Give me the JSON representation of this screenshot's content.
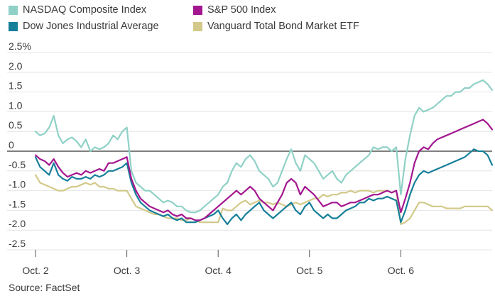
{
  "chart_data": {
    "type": "line",
    "title": "",
    "xlabel": "",
    "ylabel": "",
    "y_unit": "%",
    "ylim": [
      -2.5,
      2.5
    ],
    "y_ticks": [
      {
        "value": 2.5,
        "label": "2.5%"
      },
      {
        "value": 2.0,
        "label": "2.0"
      },
      {
        "value": 1.5,
        "label": "1.5"
      },
      {
        "value": 1.0,
        "label": "1.0"
      },
      {
        "value": 0.5,
        "label": "0.5"
      },
      {
        "value": 0.0,
        "label": "0"
      },
      {
        "value": -0.5,
        "label": "-0.5"
      },
      {
        "value": -1.0,
        "label": "-1.0"
      },
      {
        "value": -1.5,
        "label": "-1.5"
      },
      {
        "value": -2.0,
        "label": "-2.0"
      },
      {
        "value": -2.5,
        "label": "-2.5"
      }
    ],
    "x_ticks": [
      "Oct. 2",
      "Oct. 3",
      "Oct. 4",
      "Oct. 5",
      "Oct. 6"
    ],
    "grid": "horizontal",
    "zero_line": true,
    "legend_position": "top-left, two columns",
    "source": "Source: FactSet",
    "series": [
      {
        "name": "NASDAQ Composite Index",
        "color": "#8fd1c6",
        "x": [
          2.0,
          2.05,
          2.1,
          2.15,
          2.2,
          2.25,
          2.3,
          2.35,
          2.4,
          2.45,
          2.5,
          2.55,
          2.6,
          2.65,
          2.7,
          2.75,
          2.8,
          2.85,
          2.9,
          2.95,
          3.0,
          3.05,
          3.1,
          3.15,
          3.2,
          3.25,
          3.3,
          3.35,
          3.4,
          3.45,
          3.5,
          3.55,
          3.6,
          3.65,
          3.7,
          3.75,
          3.8,
          3.85,
          3.9,
          3.95,
          4.0,
          4.05,
          4.1,
          4.15,
          4.2,
          4.25,
          4.3,
          4.35,
          4.4,
          4.45,
          4.5,
          4.55,
          4.6,
          4.65,
          4.7,
          4.75,
          4.8,
          4.85,
          4.9,
          4.95,
          5.0,
          5.05,
          5.1,
          5.15,
          5.2,
          5.25,
          5.3,
          5.35,
          5.4,
          5.45,
          5.5,
          5.55,
          5.6,
          5.65,
          5.7,
          5.75,
          5.8,
          5.85,
          5.9,
          5.95,
          6.0,
          6.05,
          6.1,
          6.15,
          6.2,
          6.25,
          6.3,
          6.35,
          6.4,
          6.45,
          6.5,
          6.55,
          6.6,
          6.65,
          6.7,
          6.75,
          6.8,
          6.85,
          6.9,
          6.95,
          7.0
        ],
        "values": [
          0.5,
          0.4,
          0.45,
          0.6,
          0.9,
          0.4,
          0.2,
          0.3,
          0.35,
          0.25,
          0.1,
          0.3,
          0.0,
          0.1,
          0.05,
          0.1,
          0.2,
          0.4,
          0.3,
          0.5,
          0.6,
          -0.5,
          -0.8,
          -0.9,
          -1.0,
          -1.0,
          -1.1,
          -1.2,
          -1.3,
          -1.25,
          -1.3,
          -1.4,
          -1.4,
          -1.5,
          -1.55,
          -1.55,
          -1.5,
          -1.4,
          -1.3,
          -1.2,
          -1.1,
          -0.9,
          -0.8,
          -0.5,
          -0.3,
          -0.4,
          -0.2,
          -0.1,
          -0.25,
          -0.5,
          -0.6,
          -0.7,
          -0.9,
          -0.8,
          -0.5,
          -0.2,
          0.05,
          -0.3,
          -0.5,
          -0.1,
          -0.2,
          -0.3,
          -0.5,
          -0.7,
          -0.6,
          -0.5,
          -0.7,
          -0.8,
          -0.6,
          -0.5,
          -0.4,
          -0.3,
          -0.2,
          -0.1,
          0.1,
          0.05,
          0.1,
          0.1,
          0.0,
          0.1,
          -1.1,
          -0.2,
          0.4,
          0.9,
          1.1,
          1.0,
          1.05,
          1.1,
          1.2,
          1.3,
          1.4,
          1.4,
          1.5,
          1.5,
          1.6,
          1.6,
          1.7,
          1.75,
          1.8,
          1.7,
          1.55
        ]
      },
      {
        "name": "S&P 500 Index",
        "color": "#a3168f",
        "x": [
          2.0,
          2.05,
          2.1,
          2.15,
          2.2,
          2.25,
          2.3,
          2.35,
          2.4,
          2.45,
          2.5,
          2.55,
          2.6,
          2.65,
          2.7,
          2.75,
          2.8,
          2.85,
          2.9,
          2.95,
          3.0,
          3.05,
          3.1,
          3.15,
          3.2,
          3.25,
          3.3,
          3.35,
          3.4,
          3.45,
          3.5,
          3.55,
          3.6,
          3.65,
          3.7,
          3.75,
          3.8,
          3.85,
          3.9,
          3.95,
          4.0,
          4.05,
          4.1,
          4.15,
          4.2,
          4.25,
          4.3,
          4.35,
          4.4,
          4.45,
          4.5,
          4.55,
          4.6,
          4.65,
          4.7,
          4.75,
          4.8,
          4.85,
          4.9,
          4.95,
          5.0,
          5.05,
          5.1,
          5.15,
          5.2,
          5.25,
          5.3,
          5.35,
          5.4,
          5.45,
          5.5,
          5.55,
          5.6,
          5.65,
          5.7,
          5.75,
          5.8,
          5.85,
          5.9,
          5.95,
          6.0,
          6.05,
          6.1,
          6.15,
          6.2,
          6.25,
          6.3,
          6.35,
          6.4,
          6.45,
          6.5,
          6.55,
          6.6,
          6.65,
          6.7,
          6.75,
          6.8,
          6.85,
          6.9,
          6.95,
          7.0
        ],
        "values": [
          -0.1,
          -0.2,
          -0.25,
          -0.35,
          -0.2,
          -0.4,
          -0.55,
          -0.65,
          -0.6,
          -0.55,
          -0.6,
          -0.5,
          -0.55,
          -0.5,
          -0.45,
          -0.5,
          -0.3,
          -0.3,
          -0.25,
          -0.2,
          -0.15,
          -0.7,
          -1.0,
          -1.2,
          -1.3,
          -1.4,
          -1.45,
          -1.5,
          -1.55,
          -1.5,
          -1.6,
          -1.65,
          -1.6,
          -1.7,
          -1.7,
          -1.75,
          -1.75,
          -1.7,
          -1.6,
          -1.5,
          -1.4,
          -1.3,
          -1.2,
          -1.1,
          -1.0,
          -1.1,
          -1.0,
          -0.9,
          -1.0,
          -1.2,
          -1.3,
          -1.4,
          -1.5,
          -1.3,
          -1.1,
          -0.8,
          -0.7,
          -0.8,
          -1.1,
          -0.9,
          -1.0,
          -1.1,
          -1.25,
          -1.4,
          -1.35,
          -1.3,
          -1.3,
          -1.4,
          -1.35,
          -1.3,
          -1.3,
          -1.25,
          -1.2,
          -1.15,
          -1.1,
          -1.1,
          -1.05,
          -1.0,
          -1.05,
          -1.0,
          -1.55,
          -1.2,
          -0.8,
          -0.3,
          0.0,
          0.1,
          0.05,
          0.2,
          0.3,
          0.35,
          0.4,
          0.45,
          0.5,
          0.55,
          0.6,
          0.65,
          0.7,
          0.75,
          0.8,
          0.7,
          0.55
        ]
      },
      {
        "name": "Dow Jones Industrial Average",
        "color": "#167f9a",
        "x": [
          2.0,
          2.05,
          2.1,
          2.15,
          2.2,
          2.25,
          2.3,
          2.35,
          2.4,
          2.45,
          2.5,
          2.55,
          2.6,
          2.65,
          2.7,
          2.75,
          2.8,
          2.85,
          2.9,
          2.95,
          3.0,
          3.05,
          3.1,
          3.15,
          3.2,
          3.25,
          3.3,
          3.35,
          3.4,
          3.45,
          3.5,
          3.55,
          3.6,
          3.65,
          3.7,
          3.75,
          3.8,
          3.85,
          3.9,
          3.95,
          4.0,
          4.05,
          4.1,
          4.15,
          4.2,
          4.25,
          4.3,
          4.35,
          4.4,
          4.45,
          4.5,
          4.55,
          4.6,
          4.65,
          4.7,
          4.75,
          4.8,
          4.85,
          4.9,
          4.95,
          5.0,
          5.05,
          5.1,
          5.15,
          5.2,
          5.25,
          5.3,
          5.35,
          5.4,
          5.45,
          5.5,
          5.55,
          5.6,
          5.65,
          5.7,
          5.75,
          5.8,
          5.85,
          5.9,
          5.95,
          6.0,
          6.05,
          6.1,
          6.15,
          6.2,
          6.25,
          6.3,
          6.35,
          6.4,
          6.45,
          6.5,
          6.55,
          6.6,
          6.65,
          6.7,
          6.75,
          6.8,
          6.85,
          6.9,
          6.95,
          7.0
        ],
        "values": [
          -0.15,
          -0.4,
          -0.5,
          -0.6,
          -0.3,
          -0.6,
          -0.7,
          -0.75,
          -0.65,
          -0.7,
          -0.7,
          -0.65,
          -0.7,
          -0.6,
          -0.65,
          -0.6,
          -0.5,
          -0.5,
          -0.45,
          -0.4,
          -0.3,
          -0.8,
          -1.1,
          -1.3,
          -1.4,
          -1.5,
          -1.55,
          -1.6,
          -1.65,
          -1.6,
          -1.7,
          -1.75,
          -1.7,
          -1.8,
          -1.8,
          -1.8,
          -1.75,
          -1.7,
          -1.65,
          -1.6,
          -1.5,
          -1.7,
          -1.85,
          -1.7,
          -1.6,
          -1.75,
          -1.6,
          -1.5,
          -1.4,
          -1.3,
          -1.5,
          -1.6,
          -1.7,
          -1.6,
          -1.5,
          -1.4,
          -1.3,
          -1.5,
          -1.6,
          -1.4,
          -1.3,
          -1.5,
          -1.6,
          -1.7,
          -1.6,
          -1.7,
          -1.7,
          -1.6,
          -1.5,
          -1.45,
          -1.4,
          -1.3,
          -1.3,
          -1.2,
          -1.25,
          -1.2,
          -1.2,
          -1.15,
          -1.2,
          -1.25,
          -1.8,
          -1.5,
          -1.1,
          -0.8,
          -0.6,
          -0.5,
          -0.55,
          -0.5,
          -0.45,
          -0.4,
          -0.35,
          -0.3,
          -0.25,
          -0.2,
          -0.15,
          -0.05,
          0.05,
          0.0,
          0.0,
          -0.1,
          -0.35
        ]
      },
      {
        "name": "Vanguard Total Bond Market ETF",
        "color": "#d2c98a",
        "x": [
          2.0,
          2.05,
          2.1,
          2.15,
          2.2,
          2.25,
          2.3,
          2.35,
          2.4,
          2.45,
          2.5,
          2.55,
          2.6,
          2.65,
          2.7,
          2.75,
          2.8,
          2.85,
          2.9,
          2.95,
          3.0,
          3.05,
          3.1,
          3.15,
          3.2,
          3.25,
          3.3,
          3.35,
          3.4,
          3.45,
          3.5,
          3.55,
          3.6,
          3.65,
          3.7,
          3.75,
          3.8,
          3.85,
          3.9,
          3.95,
          4.0,
          4.05,
          4.1,
          4.15,
          4.2,
          4.25,
          4.3,
          4.35,
          4.4,
          4.45,
          4.5,
          4.55,
          4.6,
          4.65,
          4.7,
          4.75,
          4.8,
          4.85,
          4.9,
          4.95,
          5.0,
          5.05,
          5.1,
          5.15,
          5.2,
          5.25,
          5.3,
          5.35,
          5.4,
          5.45,
          5.5,
          5.55,
          5.6,
          5.65,
          5.7,
          5.75,
          5.8,
          5.85,
          5.9,
          5.95,
          6.0,
          6.05,
          6.1,
          6.15,
          6.2,
          6.25,
          6.3,
          6.35,
          6.4,
          6.45,
          6.5,
          6.55,
          6.6,
          6.65,
          6.7,
          6.75,
          6.8,
          6.85,
          6.9,
          6.95,
          7.0
        ],
        "values": [
          -0.6,
          -0.8,
          -0.85,
          -0.9,
          -0.95,
          -1.0,
          -1.0,
          -0.95,
          -0.9,
          -0.9,
          -0.85,
          -0.8,
          -0.85,
          -0.8,
          -0.9,
          -0.9,
          -0.95,
          -0.95,
          -1.0,
          -1.0,
          -1.0,
          -1.2,
          -1.4,
          -1.45,
          -1.5,
          -1.55,
          -1.6,
          -1.6,
          -1.65,
          -1.7,
          -1.7,
          -1.7,
          -1.75,
          -1.75,
          -1.7,
          -1.75,
          -1.8,
          -1.8,
          -1.8,
          -1.8,
          -1.8,
          -1.45,
          -1.5,
          -1.5,
          -1.4,
          -1.3,
          -1.25,
          -1.35,
          -1.3,
          -1.25,
          -1.3,
          -1.3,
          -1.35,
          -1.3,
          -1.35,
          -1.4,
          -1.35,
          -1.3,
          -1.35,
          -1.3,
          -1.25,
          -1.2,
          -1.2,
          -1.1,
          -1.15,
          -1.1,
          -1.1,
          -1.05,
          -1.05,
          -1.0,
          -1.05,
          -1.0,
          -1.0,
          -1.0,
          -1.05,
          -1.0,
          -1.0,
          -1.0,
          -1.05,
          -1.0,
          -1.85,
          -1.8,
          -1.7,
          -1.5,
          -1.3,
          -1.3,
          -1.35,
          -1.4,
          -1.4,
          -1.4,
          -1.45,
          -1.45,
          -1.45,
          -1.45,
          -1.4,
          -1.4,
          -1.4,
          -1.4,
          -1.4,
          -1.4,
          -1.5
        ]
      }
    ]
  }
}
